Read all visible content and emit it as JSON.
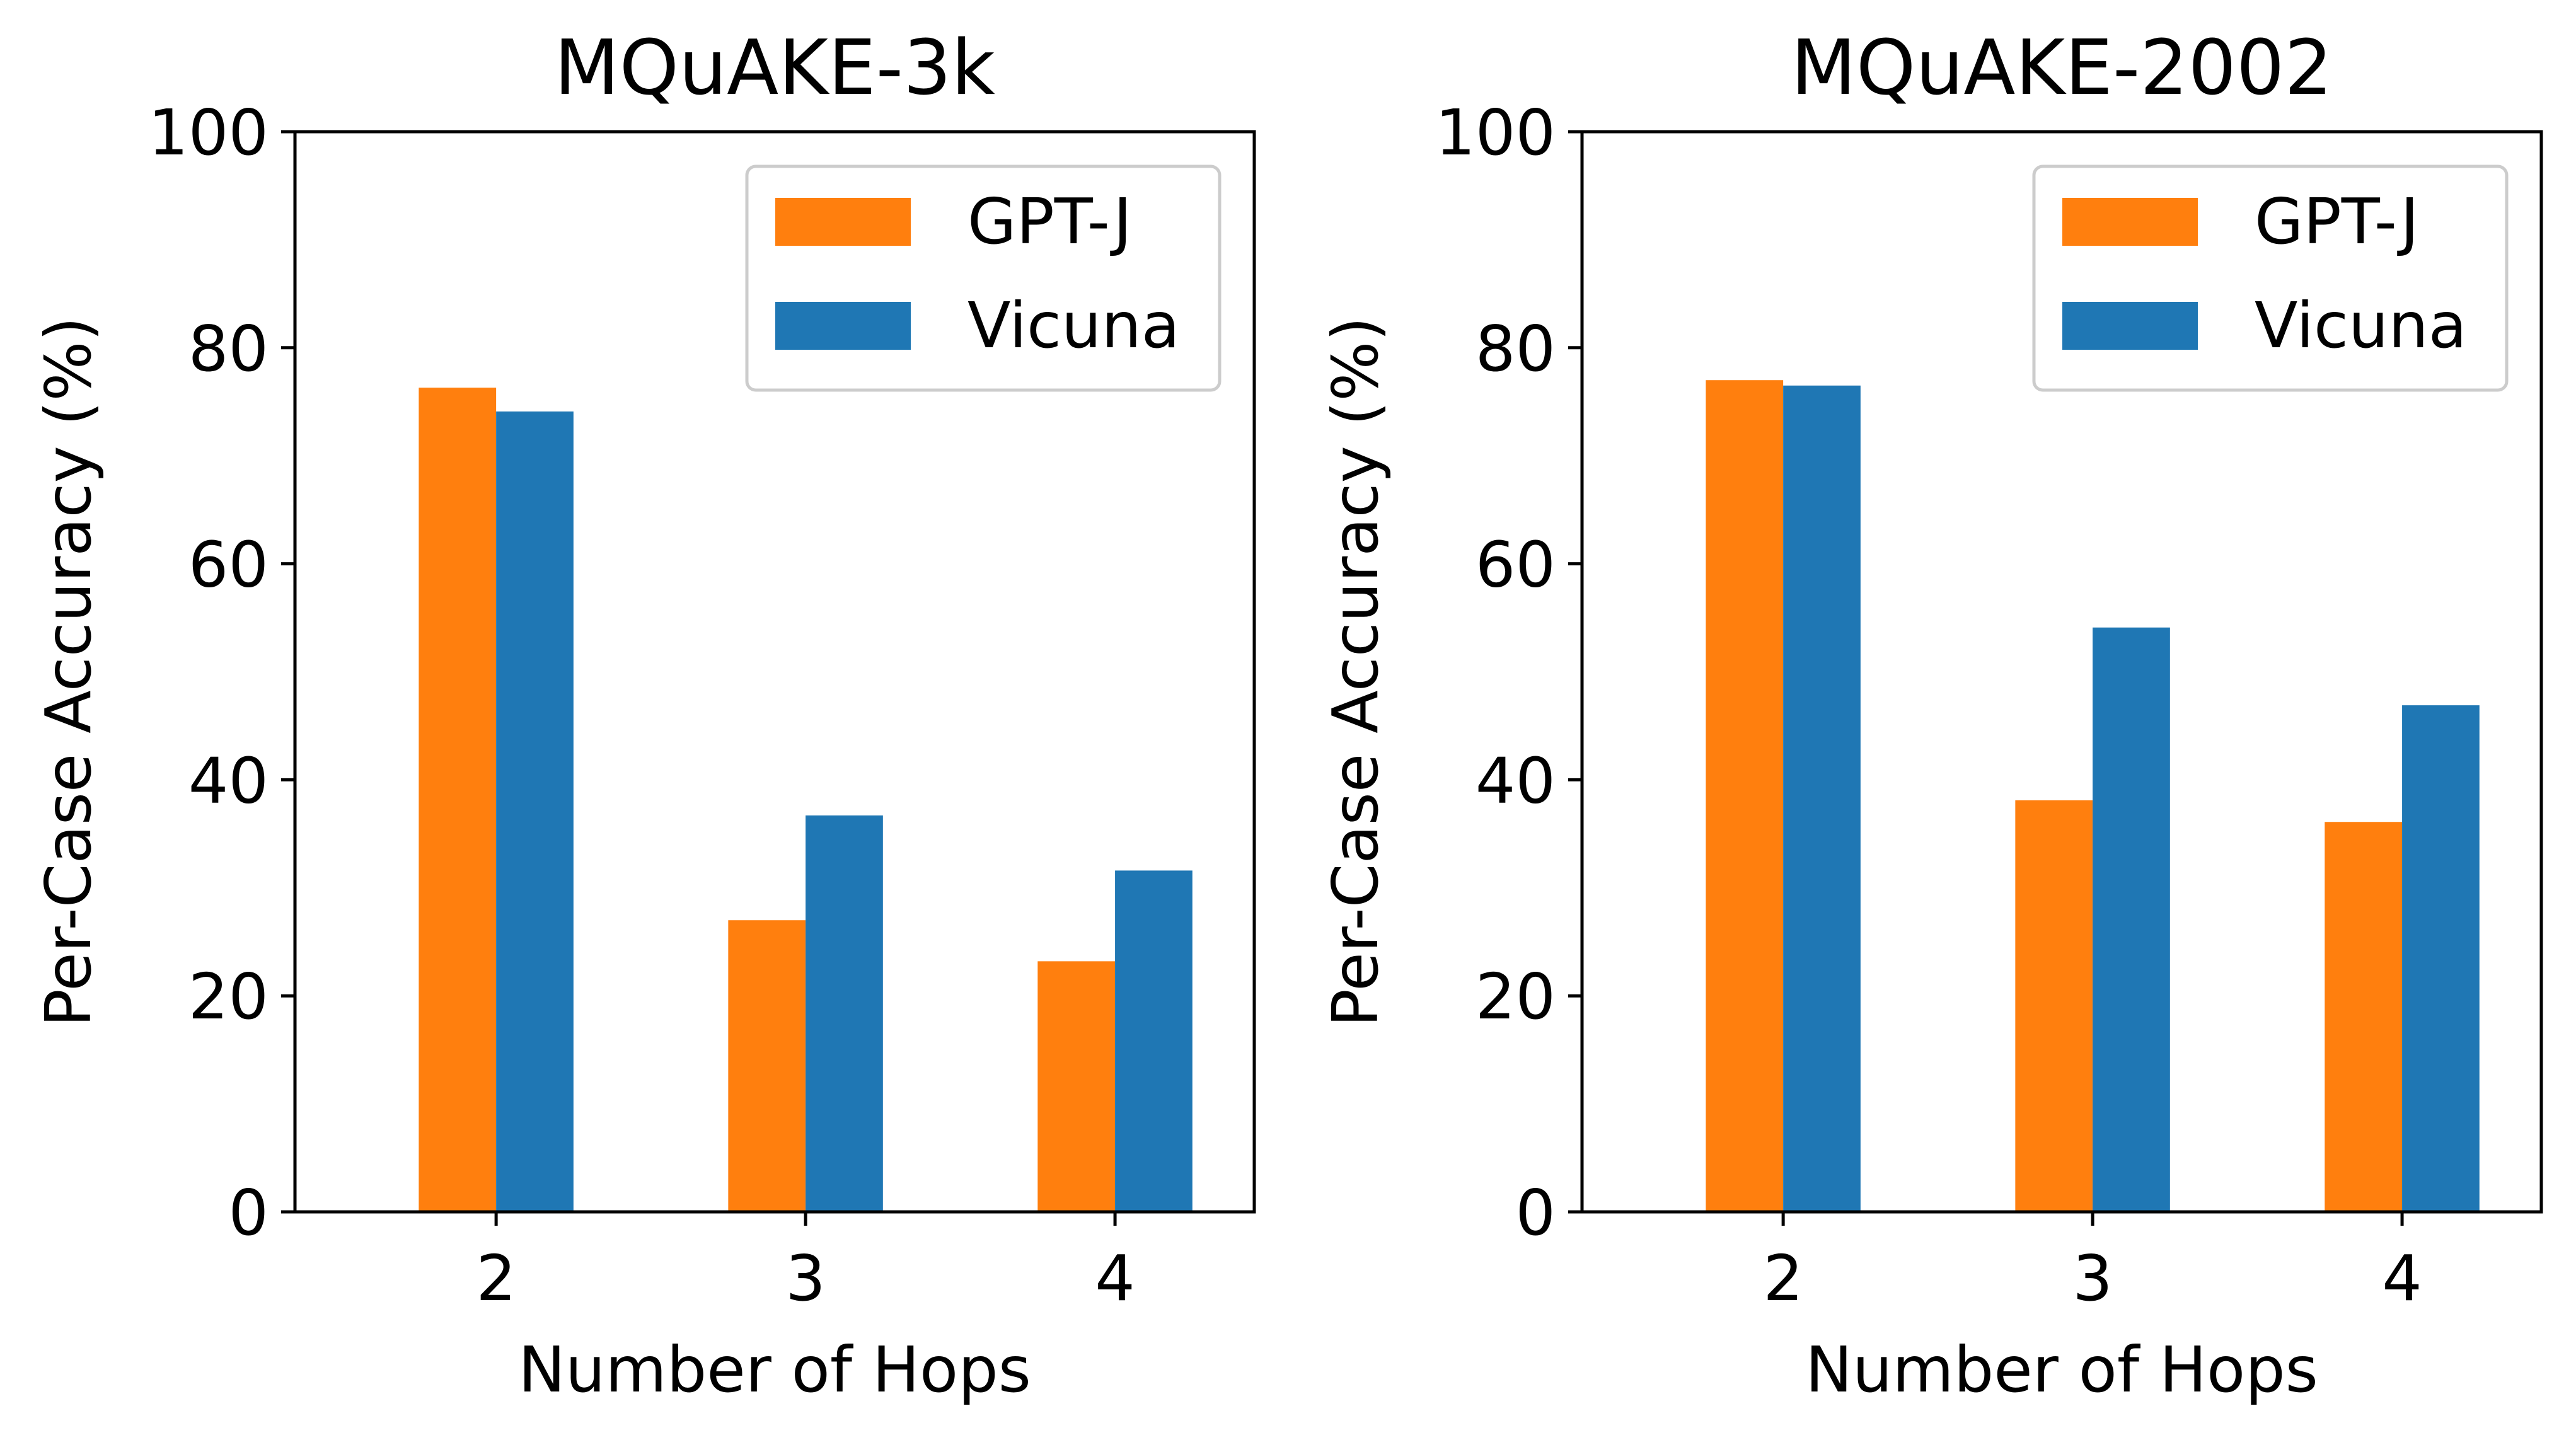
{
  "chart_data": [
    {
      "type": "bar",
      "title": "MQuAKE-3k",
      "xlabel": "Number of Hops",
      "ylabel": "Per-Case Accuracy (%)",
      "categories": [
        "2",
        "3",
        "4"
      ],
      "series": [
        {
          "name": "GPT-J",
          "color": "#ff7f0e",
          "values": [
            76.3,
            27.0,
            23.2
          ]
        },
        {
          "name": "Vicuna",
          "color": "#1f77b4",
          "values": [
            74.1,
            36.7,
            31.6
          ]
        }
      ],
      "ylim": [
        0,
        100
      ],
      "yticks": [
        "0",
        "20",
        "40",
        "60",
        "80",
        "100"
      ],
      "legend": "top-right",
      "grid": false
    },
    {
      "type": "bar",
      "title": "MQuAKE-2002",
      "xlabel": "Number of Hops",
      "ylabel": "Per-Case Accuracy (%)",
      "categories": [
        "2",
        "3",
        "4"
      ],
      "series": [
        {
          "name": "GPT-J",
          "color": "#ff7f0e",
          "values": [
            77.0,
            38.1,
            36.1
          ]
        },
        {
          "name": "Vicuna",
          "color": "#1f77b4",
          "values": [
            76.5,
            54.1,
            46.9
          ]
        }
      ],
      "ylim": [
        0,
        100
      ],
      "yticks": [
        "0",
        "20",
        "40",
        "60",
        "80",
        "100"
      ],
      "legend": "top-right",
      "grid": false
    }
  ]
}
